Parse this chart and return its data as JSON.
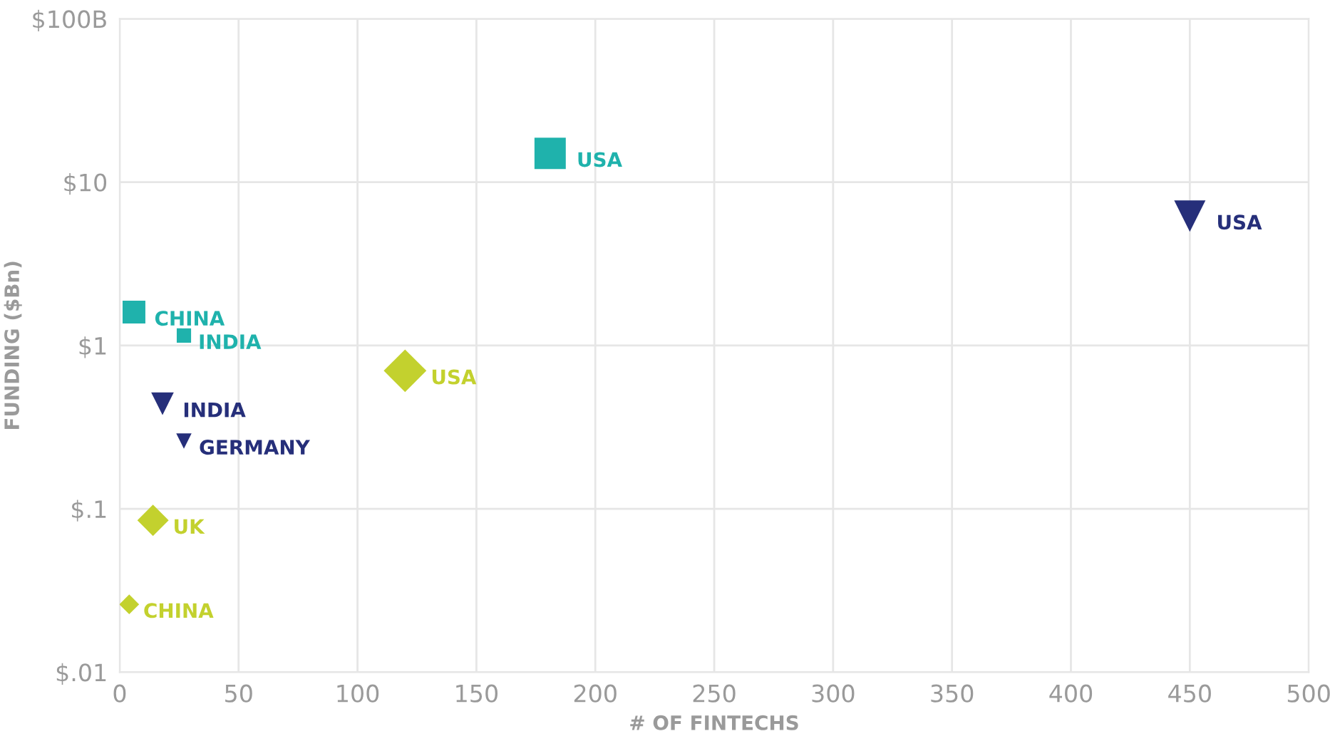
{
  "chart_data": {
    "type": "bubble",
    "xlabel": "# OF FINTECHS",
    "ylabel": "FUNDING ($Bn)",
    "log": "y",
    "xlim": [
      0,
      500
    ],
    "xticks": [
      0,
      50,
      100,
      150,
      200,
      250,
      300,
      350,
      400,
      450,
      500
    ],
    "ylim": [
      0.01,
      100
    ],
    "yticks": [
      {
        "value": 0.01,
        "label": "$.01"
      },
      {
        "value": 0.1,
        "label": "$.1"
      },
      {
        "value": 1,
        "label": "$1"
      },
      {
        "value": 10,
        "label": "$10"
      },
      {
        "value": 100,
        "label": "$100B"
      }
    ],
    "grid": true,
    "series": [
      {
        "color": "#1fb2ac",
        "marker": "square",
        "x": [
          181,
          6,
          27
        ],
        "values": [
          15,
          1.6,
          1.15
        ],
        "sizes": [
          1,
          0.53,
          0.21
        ]
      },
      {
        "color": "#262f7a",
        "marker": "triangle",
        "x": [
          450,
          18,
          27
        ],
        "values": [
          6.2,
          0.44,
          0.26
        ],
        "sizes": [
          0.5,
          0.26,
          0.12
        ]
      },
      {
        "color": "#c3d12e",
        "marker": "diamond",
        "x": [
          120,
          14,
          4
        ],
        "values": [
          0.7,
          0.085,
          0.026
        ],
        "sizes": [
          0.93,
          0.5,
          0.2
        ]
      }
    ],
    "annotations": [
      {
        "text": "USA",
        "x": 181,
        "y": 15
      },
      {
        "text": "CHINA",
        "x": 6,
        "y": 1.6
      },
      {
        "text": "INDIA",
        "x": 27,
        "y": 1.15
      },
      {
        "text": "USA",
        "x": 450,
        "y": 6.2
      },
      {
        "text": "INDIA",
        "x": 18,
        "y": 0.44
      },
      {
        "text": "GERMANY",
        "x": 27,
        "y": 0.26
      },
      {
        "text": "USA",
        "x": 120,
        "y": 0.7
      },
      {
        "text": "UK",
        "x": 14,
        "y": 0.085
      },
      {
        "text": "CHINA",
        "x": 4,
        "y": 0.026
      }
    ]
  }
}
